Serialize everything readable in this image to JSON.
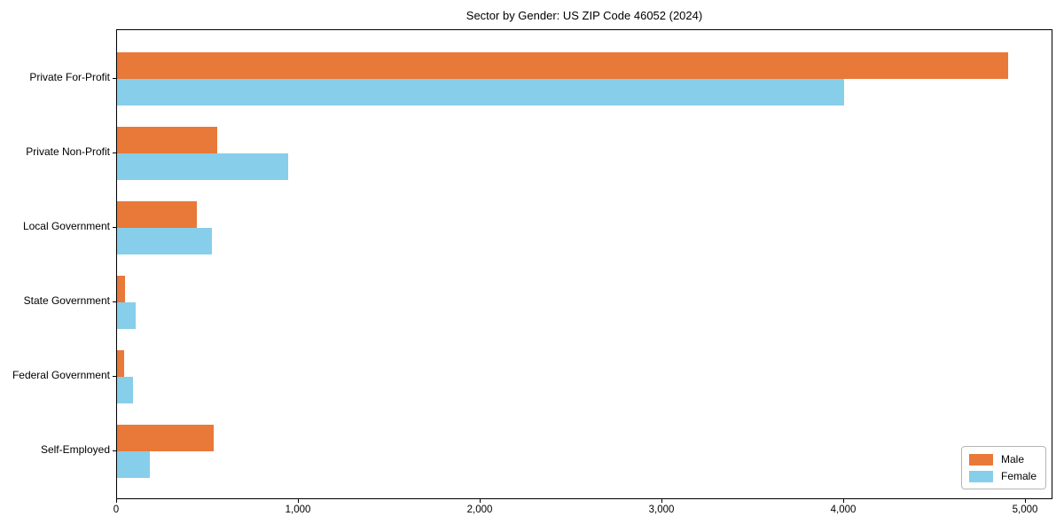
{
  "chart_data": {
    "type": "bar",
    "orientation": "horizontal",
    "title": "Sector by Gender: US ZIP Code 46052 (2024)",
    "categories": [
      "Private For-Profit",
      "Private Non-Profit",
      "Local Government",
      "State Government",
      "Federal Government",
      "Self-Employed"
    ],
    "series": [
      {
        "name": "Male",
        "color": "#E87939",
        "values": [
          4900,
          550,
          440,
          45,
          40,
          530
        ]
      },
      {
        "name": "Female",
        "color": "#87CEEB",
        "values": [
          4000,
          940,
          520,
          100,
          90,
          180
        ]
      }
    ],
    "xlabel": "",
    "ylabel": "",
    "xlim": [
      0,
      5150
    ],
    "x_ticks": [
      0,
      1000,
      2000,
      3000,
      4000,
      5000
    ],
    "x_tick_labels": [
      "0",
      "1,000",
      "2,000",
      "3,000",
      "4,000",
      "5,000"
    ],
    "legend_position": "lower-right",
    "grid": false,
    "background_color": "#FFFFFF",
    "axis_color": "#000000"
  }
}
